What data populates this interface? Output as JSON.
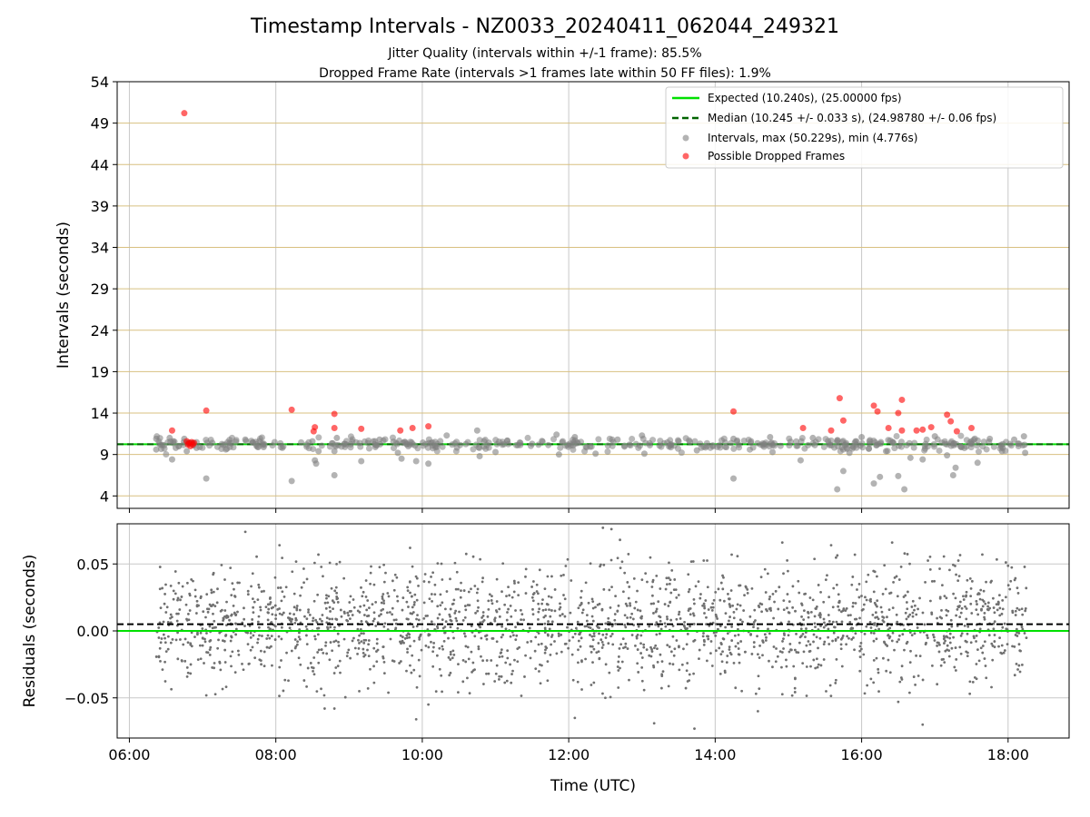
{
  "chart_data": [
    {
      "type": "scatter",
      "title": "Timestamp Intervals - NZ0033_20240411_062044_249321",
      "subtitle": [
        "Jitter Quality (intervals within +/-1 frame): 85.5%",
        "Dropped Frame Rate (intervals >1 frames late within 50 FF files): 1.9%"
      ],
      "xlabel": "",
      "ylabel": "Intervals (seconds)",
      "xlim": [
        "05:50",
        "18:50"
      ],
      "ylim": [
        2.5,
        54
      ],
      "yticks": [
        4,
        9,
        14,
        19,
        24,
        29,
        34,
        39,
        44,
        49,
        54
      ],
      "grid": "on",
      "legend_position": "top-right",
      "legend": [
        "Expected (10.240s), (25.00000 fps)",
        "Median (10.245 +/- 0.033 s), (24.98780 +/- 0.06 fps)",
        "Intervals, max (50.229s), min (4.776s)",
        "Possible Dropped Frames"
      ],
      "expected_line": 10.24,
      "median_line": 10.245,
      "intervals_sample": [
        {
          "x": "06:22",
          "y": 10.9
        },
        {
          "x": "06:22",
          "y": 9.6
        },
        {
          "x": "06:33",
          "y": 11.0
        },
        {
          "x": "06:35",
          "y": 8.4
        },
        {
          "x": "06:36",
          "y": 10.6
        },
        {
          "x": "06:38",
          "y": 9.8
        },
        {
          "x": "06:45",
          "y": 10.9
        },
        {
          "x": "06:47",
          "y": 9.4
        },
        {
          "x": "06:55",
          "y": 9.8
        },
        {
          "x": "07:03",
          "y": 6.1
        },
        {
          "x": "07:08",
          "y": 10.4
        },
        {
          "x": "07:20",
          "y": 9.7
        },
        {
          "x": "07:35",
          "y": 10.8
        },
        {
          "x": "07:50",
          "y": 9.9
        },
        {
          "x": "08:13",
          "y": 5.8
        },
        {
          "x": "08:30",
          "y": 10.6
        },
        {
          "x": "08:32",
          "y": 8.3
        },
        {
          "x": "08:33",
          "y": 7.9
        },
        {
          "x": "08:35",
          "y": 9.4
        },
        {
          "x": "08:48",
          "y": 6.5
        },
        {
          "x": "08:48",
          "y": 9.4
        },
        {
          "x": "08:50",
          "y": 11.0
        },
        {
          "x": "09:10",
          "y": 8.2
        },
        {
          "x": "09:25",
          "y": 10.8
        },
        {
          "x": "09:40",
          "y": 9.2
        },
        {
          "x": "09:43",
          "y": 8.5
        },
        {
          "x": "09:55",
          "y": 8.2
        },
        {
          "x": "10:05",
          "y": 7.9
        },
        {
          "x": "10:20",
          "y": 11.3
        },
        {
          "x": "10:45",
          "y": 11.9
        },
        {
          "x": "10:47",
          "y": 8.8
        },
        {
          "x": "11:00",
          "y": 9.3
        },
        {
          "x": "11:30",
          "y": 10.3
        },
        {
          "x": "11:50",
          "y": 11.4
        },
        {
          "x": "11:52",
          "y": 9.0
        },
        {
          "x": "12:05",
          "y": 11.1
        },
        {
          "x": "12:22",
          "y": 9.1
        },
        {
          "x": "12:40",
          "y": 10.8
        },
        {
          "x": "13:00",
          "y": 11.3
        },
        {
          "x": "13:02",
          "y": 9.1
        },
        {
          "x": "13:30",
          "y": 10.6
        },
        {
          "x": "13:45",
          "y": 9.5
        },
        {
          "x": "14:15",
          "y": 10.9
        },
        {
          "x": "14:15",
          "y": 6.1
        },
        {
          "x": "14:45",
          "y": 11.1
        },
        {
          "x": "14:47",
          "y": 9.3
        },
        {
          "x": "15:10",
          "y": 8.3
        },
        {
          "x": "15:20",
          "y": 11.0
        },
        {
          "x": "15:40",
          "y": 10.7
        },
        {
          "x": "15:40",
          "y": 4.8
        },
        {
          "x": "15:45",
          "y": 7.0
        },
        {
          "x": "15:50",
          "y": 9.2
        },
        {
          "x": "16:00",
          "y": 11.1
        },
        {
          "x": "16:10",
          "y": 5.5
        },
        {
          "x": "16:15",
          "y": 6.3
        },
        {
          "x": "16:20",
          "y": 9.4
        },
        {
          "x": "16:30",
          "y": 6.4
        },
        {
          "x": "16:35",
          "y": 4.8
        },
        {
          "x": "16:40",
          "y": 8.6
        },
        {
          "x": "16:50",
          "y": 8.4
        },
        {
          "x": "17:00",
          "y": 11.2
        },
        {
          "x": "17:10",
          "y": 8.9
        },
        {
          "x": "17:15",
          "y": 6.5
        },
        {
          "x": "17:17",
          "y": 7.4
        },
        {
          "x": "17:30",
          "y": 10.6
        },
        {
          "x": "17:35",
          "y": 8.0
        },
        {
          "x": "17:45",
          "y": 10.9
        },
        {
          "x": "17:55",
          "y": 9.4
        },
        {
          "x": "18:05",
          "y": 10.8
        },
        {
          "x": "18:13",
          "y": 11.2
        },
        {
          "x": "18:14",
          "y": 9.2
        }
      ],
      "dropped_frames": [
        {
          "x": "06:35",
          "y": 11.9
        },
        {
          "x": "06:45",
          "y": 50.2
        },
        {
          "x": "06:47",
          "y": 10.6
        },
        {
          "x": "06:48",
          "y": 10.2
        },
        {
          "x": "06:49",
          "y": 10.4
        },
        {
          "x": "06:50",
          "y": 10.0
        },
        {
          "x": "06:51",
          "y": 10.5
        },
        {
          "x": "06:52",
          "y": 10.2
        },
        {
          "x": "06:53",
          "y": 10.4
        },
        {
          "x": "07:03",
          "y": 14.3
        },
        {
          "x": "08:13",
          "y": 14.4
        },
        {
          "x": "08:31",
          "y": 11.8
        },
        {
          "x": "08:32",
          "y": 12.3
        },
        {
          "x": "08:48",
          "y": 12.2
        },
        {
          "x": "08:48",
          "y": 13.9
        },
        {
          "x": "09:10",
          "y": 12.1
        },
        {
          "x": "09:42",
          "y": 11.9
        },
        {
          "x": "09:52",
          "y": 12.2
        },
        {
          "x": "10:05",
          "y": 12.4
        },
        {
          "x": "14:15",
          "y": 14.2
        },
        {
          "x": "15:12",
          "y": 12.2
        },
        {
          "x": "15:35",
          "y": 11.9
        },
        {
          "x": "15:42",
          "y": 15.8
        },
        {
          "x": "15:45",
          "y": 13.1
        },
        {
          "x": "16:10",
          "y": 14.9
        },
        {
          "x": "16:13",
          "y": 14.2
        },
        {
          "x": "16:22",
          "y": 12.2
        },
        {
          "x": "16:30",
          "y": 14.0
        },
        {
          "x": "16:33",
          "y": 15.6
        },
        {
          "x": "16:33",
          "y": 11.9
        },
        {
          "x": "16:45",
          "y": 11.9
        },
        {
          "x": "16:50",
          "y": 12.0
        },
        {
          "x": "16:57",
          "y": 12.3
        },
        {
          "x": "17:10",
          "y": 13.8
        },
        {
          "x": "17:13",
          "y": 13.0
        },
        {
          "x": "17:18",
          "y": 11.8
        },
        {
          "x": "17:30",
          "y": 12.2
        }
      ]
    },
    {
      "type": "scatter",
      "title": "",
      "xlabel": "Time (UTC)",
      "ylabel": "Residuals (seconds)",
      "xlim": [
        "05:50",
        "18:50"
      ],
      "ylim": [
        -0.08,
        0.08
      ],
      "xticks": [
        "06:00",
        "08:00",
        "10:00",
        "12:00",
        "14:00",
        "16:00",
        "18:00"
      ],
      "yticks": [
        -0.05,
        0.0,
        0.05
      ],
      "ytick_labels": [
        "−0.05",
        "0.00",
        "0.05"
      ],
      "grid": "on",
      "expected_line": 0.0,
      "median_line": 0.005,
      "residual_range": [
        -0.073,
        0.078
      ],
      "point_count_approx": 2100,
      "residuals_sample": [
        {
          "x": "07:35",
          "y": 0.074
        },
        {
          "x": "08:03",
          "y": 0.064
        },
        {
          "x": "09:50",
          "y": 0.062
        },
        {
          "x": "12:28",
          "y": 0.077
        },
        {
          "x": "12:35",
          "y": 0.076
        },
        {
          "x": "12:42",
          "y": 0.068
        },
        {
          "x": "14:55",
          "y": 0.066
        },
        {
          "x": "15:35",
          "y": 0.064
        },
        {
          "x": "16:25",
          "y": 0.066
        },
        {
          "x": "08:40",
          "y": -0.058
        },
        {
          "x": "08:48",
          "y": -0.058
        },
        {
          "x": "09:55",
          "y": -0.066
        },
        {
          "x": "10:05",
          "y": -0.055
        },
        {
          "x": "12:05",
          "y": -0.065
        },
        {
          "x": "13:10",
          "y": -0.069
        },
        {
          "x": "13:43",
          "y": -0.073
        },
        {
          "x": "14:35",
          "y": -0.06
        },
        {
          "x": "16:50",
          "y": -0.07
        },
        {
          "x": "16:30",
          "y": -0.053
        },
        {
          "x": "12:30",
          "y": -0.05
        }
      ]
    }
  ]
}
